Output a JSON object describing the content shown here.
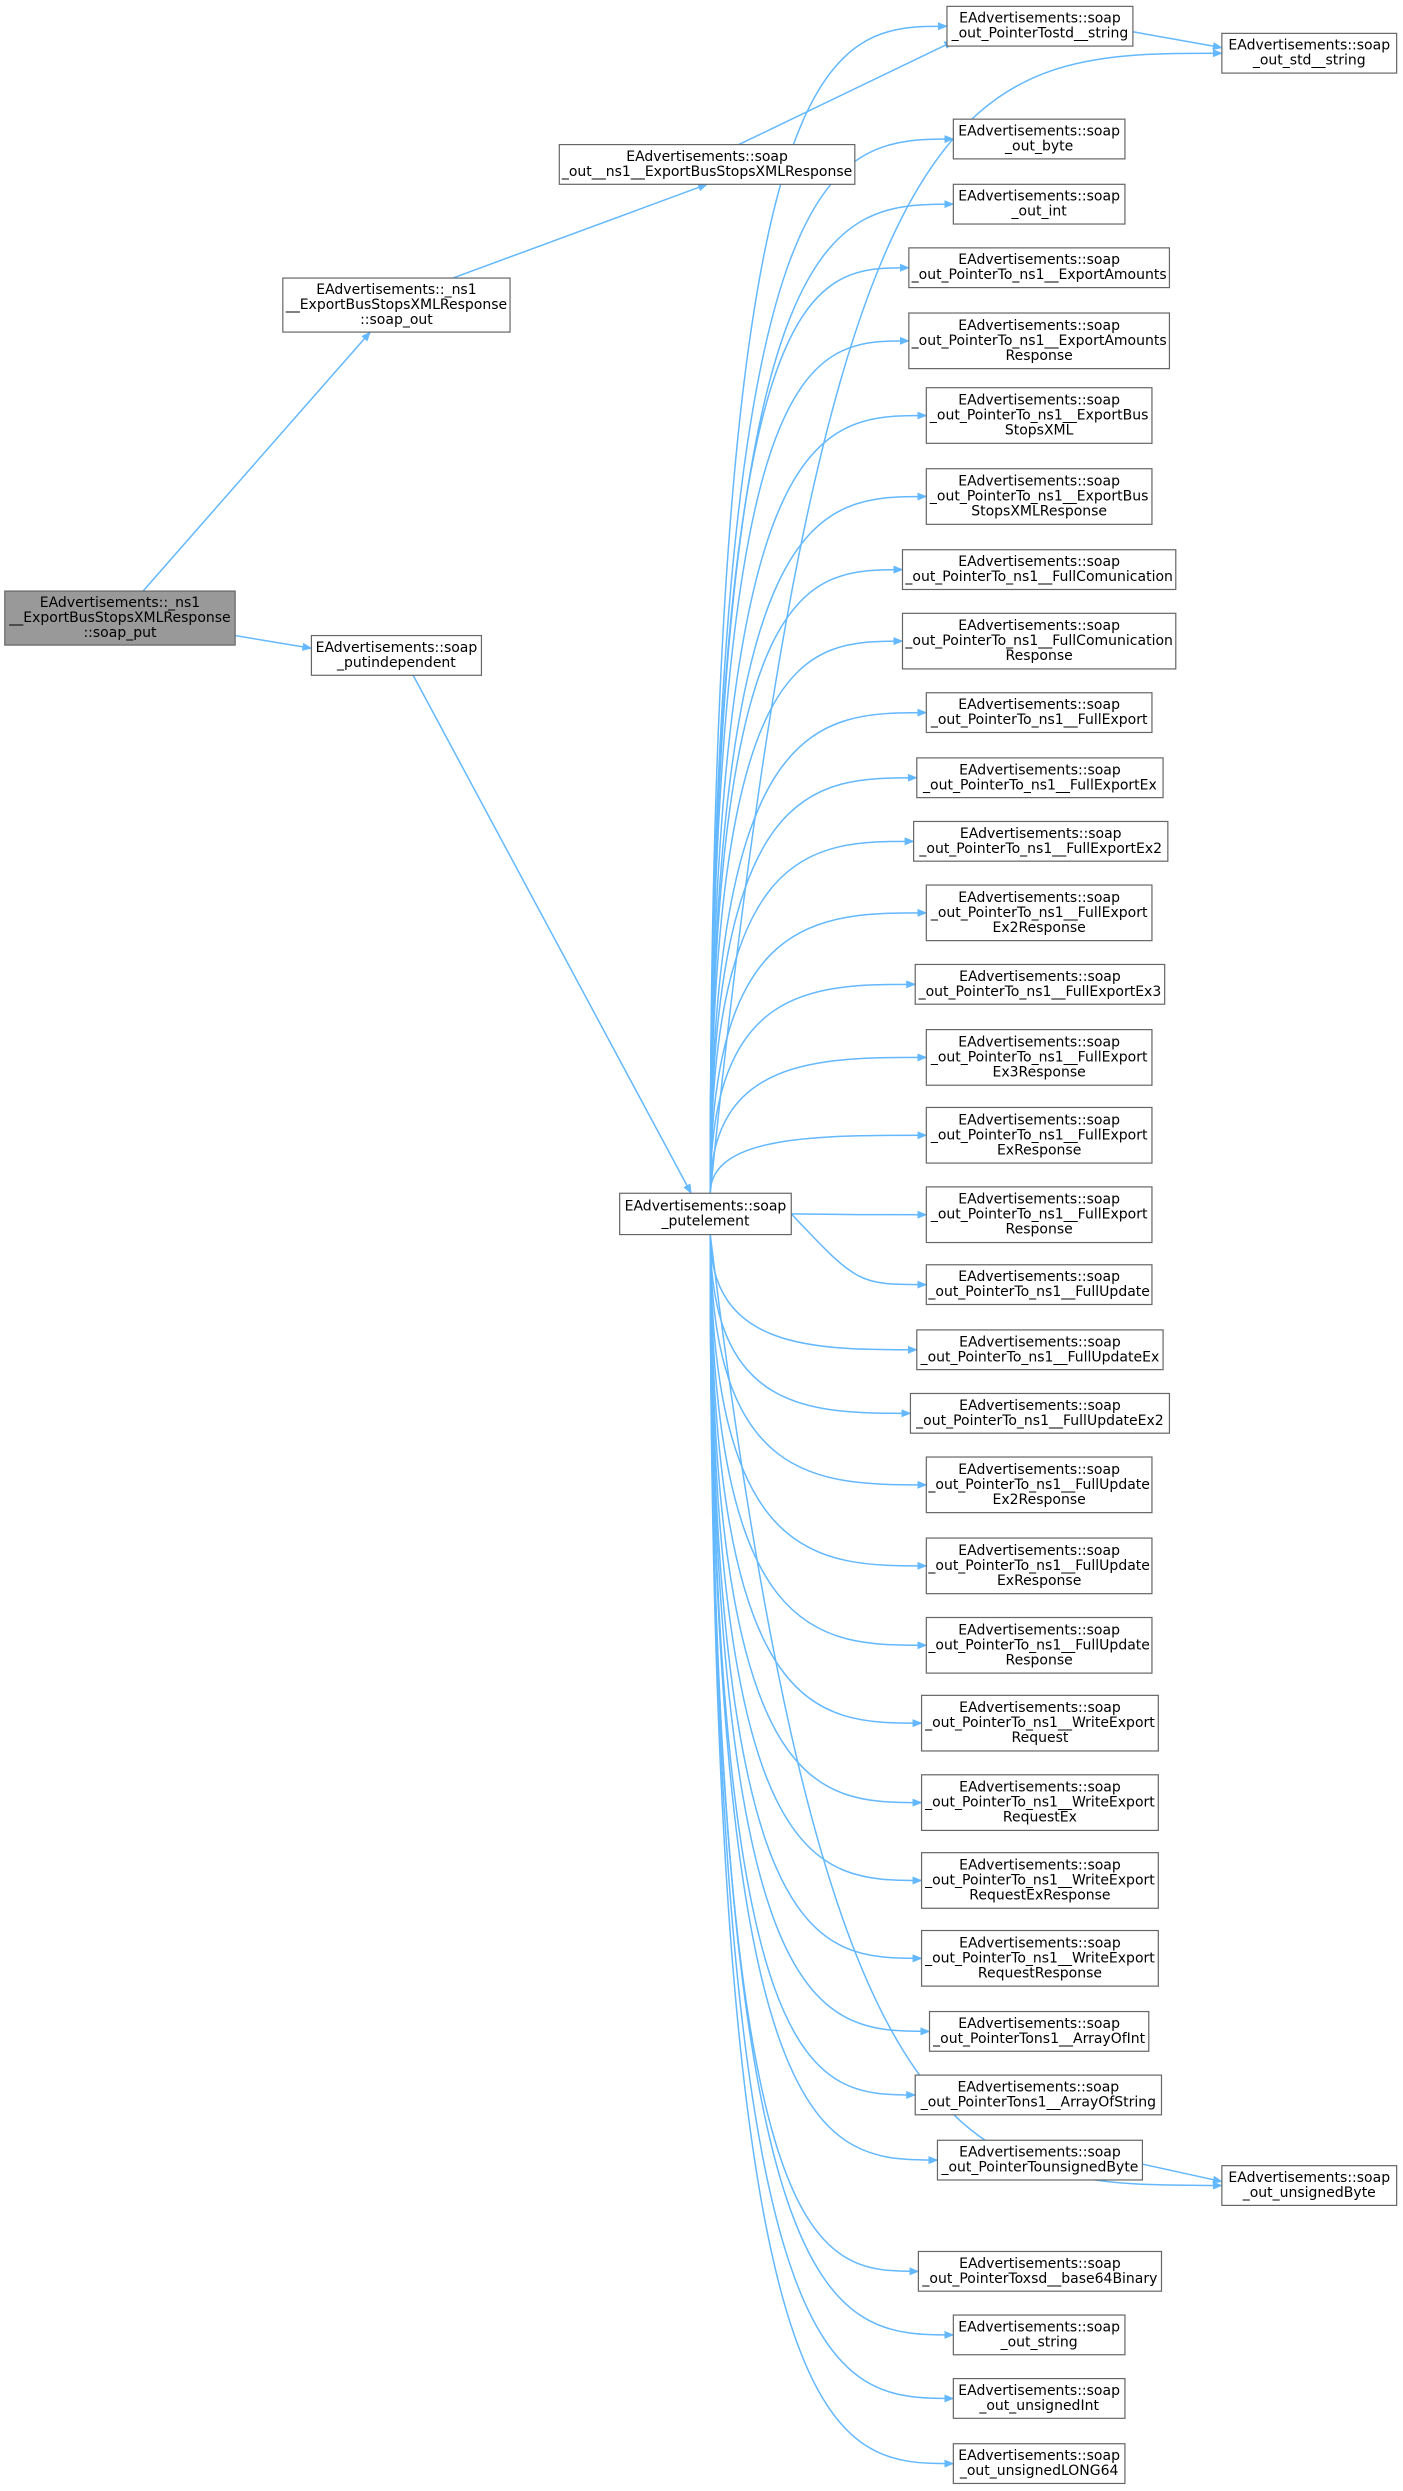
{
  "nodes": [
    {
      "lines": [
        "EAdvertisements::_ns1",
        "__ExportBusStopsXMLResponse",
        "::soap_put"
      ]
    },
    {
      "lines": [
        "EAdvertisements::_ns1",
        "__ExportBusStopsXMLResponse",
        "::soap_out"
      ]
    },
    {
      "lines": [
        "EAdvertisements::soap",
        "_out__ns1__ExportBusStopsXMLResponse"
      ]
    },
    {
      "lines": [
        "EAdvertisements::soap",
        "_putindependent"
      ]
    },
    {
      "lines": [
        "EAdvertisements::soap",
        "_putelement"
      ]
    },
    {
      "lines": [
        "EAdvertisements::soap",
        "_out_PointerTostd__string"
      ]
    },
    {
      "lines": [
        "EAdvertisements::soap",
        "_out_std__string"
      ]
    },
    {
      "lines": [
        "EAdvertisements::soap",
        "_out_byte"
      ]
    },
    {
      "lines": [
        "EAdvertisements::soap",
        "_out_int"
      ]
    },
    {
      "lines": [
        "EAdvertisements::soap",
        "_out_PointerTo_ns1__ExportAmounts"
      ]
    },
    {
      "lines": [
        "EAdvertisements::soap",
        "_out_PointerTo_ns1__ExportAmounts",
        "Response"
      ]
    },
    {
      "lines": [
        "EAdvertisements::soap",
        "_out_PointerTo_ns1__ExportBus",
        "StopsXML"
      ]
    },
    {
      "lines": [
        "EAdvertisements::soap",
        "_out_PointerTo_ns1__ExportBus",
        "StopsXMLResponse"
      ]
    },
    {
      "lines": [
        "EAdvertisements::soap",
        "_out_PointerTo_ns1__FullComunication"
      ]
    },
    {
      "lines": [
        "EAdvertisements::soap",
        "_out_PointerTo_ns1__FullComunication",
        "Response"
      ]
    },
    {
      "lines": [
        "EAdvertisements::soap",
        "_out_PointerTo_ns1__FullExport"
      ]
    },
    {
      "lines": [
        "EAdvertisements::soap",
        "_out_PointerTo_ns1__FullExportEx"
      ]
    },
    {
      "lines": [
        "EAdvertisements::soap",
        "_out_PointerTo_ns1__FullExportEx2"
      ]
    },
    {
      "lines": [
        "EAdvertisements::soap",
        "_out_PointerTo_ns1__FullExport",
        "Ex2Response"
      ]
    },
    {
      "lines": [
        "EAdvertisements::soap",
        "_out_PointerTo_ns1__FullExportEx3"
      ]
    },
    {
      "lines": [
        "EAdvertisements::soap",
        "_out_PointerTo_ns1__FullExport",
        "Ex3Response"
      ]
    },
    {
      "lines": [
        "EAdvertisements::soap",
        "_out_PointerTo_ns1__FullExport",
        "ExResponse"
      ]
    },
    {
      "lines": [
        "EAdvertisements::soap",
        "_out_PointerTo_ns1__FullExport",
        "Response"
      ]
    },
    {
      "lines": [
        "EAdvertisements::soap",
        "_out_PointerTo_ns1__FullUpdate"
      ]
    },
    {
      "lines": [
        "EAdvertisements::soap",
        "_out_PointerTo_ns1__FullUpdateEx"
      ]
    },
    {
      "lines": [
        "EAdvertisements::soap",
        "_out_PointerTo_ns1__FullUpdateEx2"
      ]
    },
    {
      "lines": [
        "EAdvertisements::soap",
        "_out_PointerTo_ns1__FullUpdate",
        "Ex2Response"
      ]
    },
    {
      "lines": [
        "EAdvertisements::soap",
        "_out_PointerTo_ns1__FullUpdate",
        "ExResponse"
      ]
    },
    {
      "lines": [
        "EAdvertisements::soap",
        "_out_PointerTo_ns1__FullUpdate",
        "Response"
      ]
    },
    {
      "lines": [
        "EAdvertisements::soap",
        "_out_PointerTo_ns1__WriteExport",
        "Request"
      ]
    },
    {
      "lines": [
        "EAdvertisements::soap",
        "_out_PointerTo_ns1__WriteExport",
        "RequestEx"
      ]
    },
    {
      "lines": [
        "EAdvertisements::soap",
        "_out_PointerTo_ns1__WriteExport",
        "RequestExResponse"
      ]
    },
    {
      "lines": [
        "EAdvertisements::soap",
        "_out_PointerTo_ns1__WriteExport",
        "RequestResponse"
      ]
    },
    {
      "lines": [
        "EAdvertisements::soap",
        "_out_PointerTons1__ArrayOfInt"
      ]
    },
    {
      "lines": [
        "EAdvertisements::soap",
        "_out_PointerTons1__ArrayOfString"
      ]
    },
    {
      "lines": [
        "EAdvertisements::soap",
        "_out_PointerTounsignedByte"
      ]
    },
    {
      "lines": [
        "EAdvertisements::soap",
        "_out_unsignedByte"
      ]
    },
    {
      "lines": [
        "EAdvertisements::soap",
        "_out_PointerToxsd__base64Binary"
      ]
    },
    {
      "lines": [
        "EAdvertisements::soap",
        "_out_string"
      ]
    },
    {
      "lines": [
        "EAdvertisements::soap",
        "_out_unsignedInt"
      ]
    },
    {
      "lines": [
        "EAdvertisements::soap",
        "_out_unsignedLONG64"
      ]
    }
  ]
}
